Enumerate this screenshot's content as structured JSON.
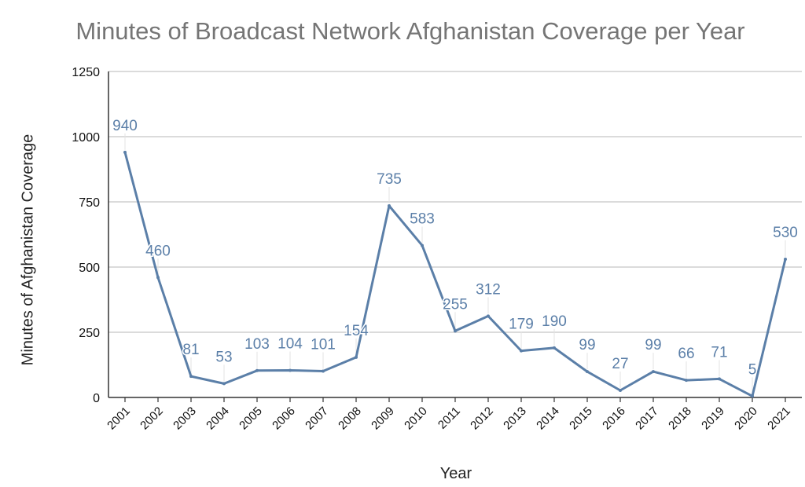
{
  "chart_data": {
    "type": "line",
    "title": "Minutes of Broadcast Network Afghanistan Coverage per Year",
    "xlabel": "Year",
    "ylabel": "Minutes of Afghanistan Coverage",
    "categories": [
      "2001",
      "2002",
      "2003",
      "2004",
      "2005",
      "2006",
      "2007",
      "2008",
      "2009",
      "2010",
      "2011",
      "2012",
      "2013",
      "2014",
      "2015",
      "2016",
      "2017",
      "2018",
      "2019",
      "2020",
      "2021"
    ],
    "series": [
      {
        "values": [
          940,
          460,
          81,
          53,
          103,
          104,
          101,
          154,
          735,
          583,
          255,
          312,
          179,
          190,
          99,
          27,
          99,
          66,
          71,
          5,
          530
        ]
      }
    ],
    "data_labels": [
      "940",
      "460",
      "81",
      "53",
      "103",
      "104",
      "101",
      "154",
      "735",
      "583",
      "255",
      "312",
      "179",
      "190",
      "99",
      "27",
      "99",
      "66",
      "71",
      "5",
      "530"
    ],
    "ylim": [
      0,
      1250
    ],
    "yticks": [
      "0",
      "250",
      "500",
      "750",
      "1000",
      "1250"
    ],
    "grid": true,
    "legend": "none",
    "colors": {
      "line": "#5b7fa8",
      "label": "#5b7fa8",
      "grid": "#cfcfcf",
      "axis": "#333333",
      "title": "#757575"
    }
  }
}
